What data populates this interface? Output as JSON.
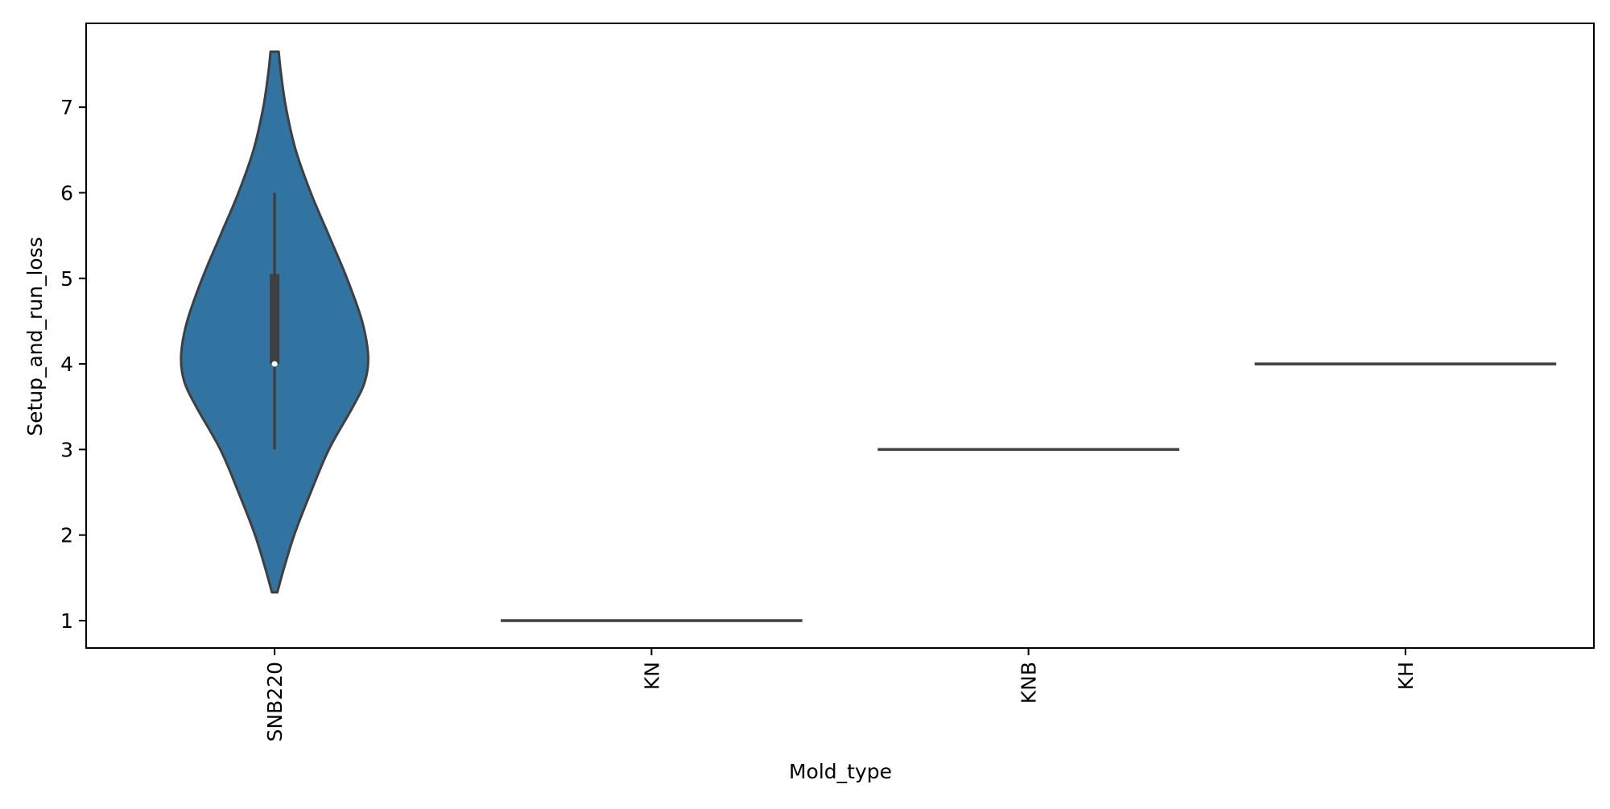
{
  "chart_data": {
    "type": "violin",
    "xlabel": "Mold_type",
    "ylabel": "Setup_and_run_loss",
    "categories": [
      "SNB220",
      "KN",
      "KNB",
      "KH"
    ],
    "ylim": [
      0.68,
      7.98
    ],
    "yticks": [
      1,
      2,
      3,
      4,
      5,
      6,
      7
    ],
    "xtick_rotation": "vertical",
    "grid": false,
    "legend": "none",
    "colors": {
      "violin_fill": "#3274a1",
      "outline": "#3f3f3f",
      "median_marker": "#ffffff"
    },
    "violins": [
      {
        "category": "SNB220",
        "range": [
          1.33,
          7.65
        ],
        "box": {
          "min": 3.0,
          "q1": 4.0,
          "median": 4.0,
          "q3": 5.05,
          "max": 6.0
        },
        "density_profile": [
          [
            1.33,
            0.018
          ],
          [
            1.6,
            0.06
          ],
          [
            2.0,
            0.13
          ],
          [
            2.5,
            0.24
          ],
          [
            3.0,
            0.36
          ],
          [
            3.5,
            0.52
          ],
          [
            3.8,
            0.6
          ],
          [
            4.1,
            0.62
          ],
          [
            4.5,
            0.58
          ],
          [
            5.0,
            0.48
          ],
          [
            5.5,
            0.36
          ],
          [
            6.0,
            0.24
          ],
          [
            6.5,
            0.14
          ],
          [
            7.0,
            0.075
          ],
          [
            7.4,
            0.042
          ],
          [
            7.65,
            0.027
          ]
        ]
      },
      {
        "category": "KN",
        "range": [
          1,
          1
        ],
        "single_value": 1
      },
      {
        "category": "KNB",
        "range": [
          3,
          3
        ],
        "single_value": 3
      },
      {
        "category": "KH",
        "range": [
          4,
          4
        ],
        "single_value": 4
      }
    ]
  }
}
